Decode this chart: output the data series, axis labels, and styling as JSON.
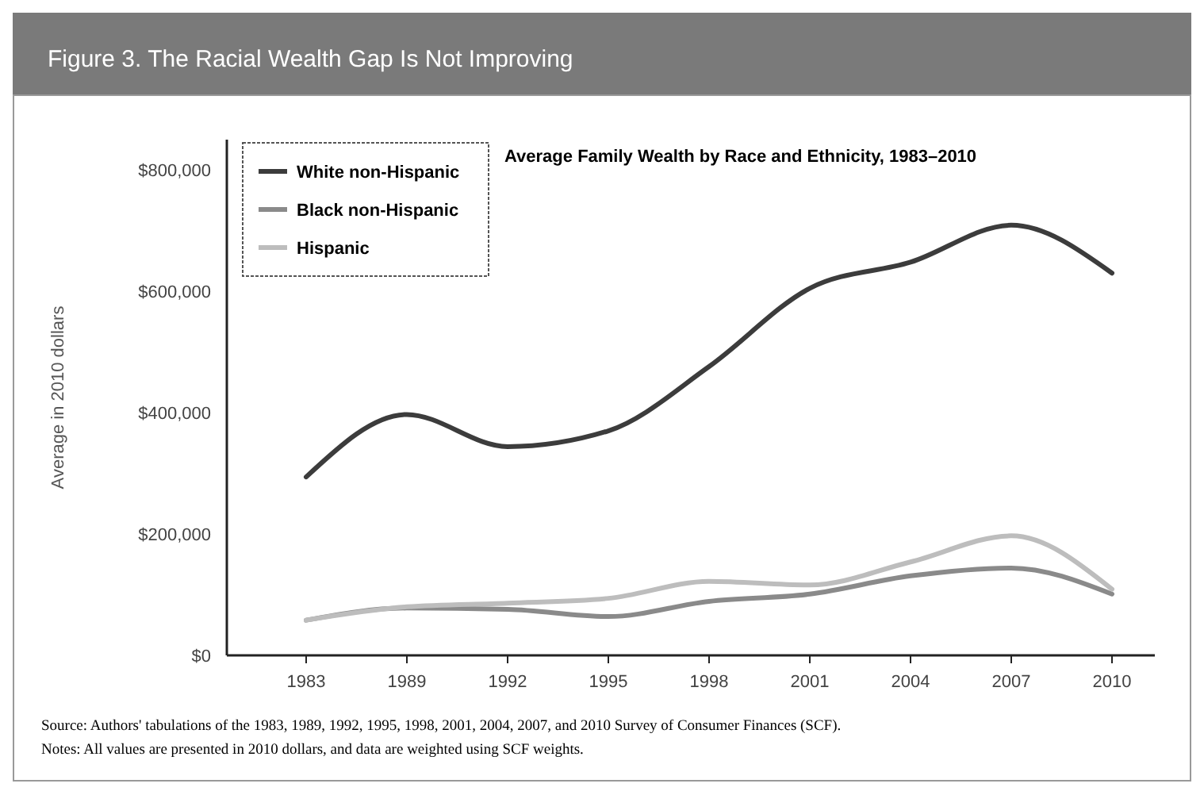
{
  "chart_data": {
    "type": "line",
    "title": "Figure 3. The Racial Wealth Gap Is Not Improving",
    "subtitle": "Average Family Wealth by Race and Ethnicity, 1983–2010",
    "ylabel": "Average in 2010 dollars",
    "categories": [
      "1983",
      "1989",
      "1992",
      "1995",
      "1998",
      "2001",
      "2004",
      "2007",
      "2010"
    ],
    "series": [
      {
        "name": "White non-Hispanic",
        "color": "#3c3c3c",
        "values": [
          294000,
          397000,
          344000,
          370000,
          476000,
          605000,
          648000,
          709000,
          630000
        ]
      },
      {
        "name": "Black non-Hispanic",
        "color": "#8a8a8a",
        "values": [
          58000,
          78000,
          76000,
          64000,
          89000,
          101000,
          131000,
          144000,
          101000
        ]
      },
      {
        "name": "Hispanic",
        "color": "#bdbdbd",
        "values": [
          58000,
          80000,
          86000,
          94000,
          122000,
          116000,
          154000,
          197000,
          109000
        ]
      }
    ],
    "ylim": [
      0,
      850000
    ],
    "yticks": [
      {
        "value": 0,
        "label": "$0"
      },
      {
        "value": 200000,
        "label": "$200,000"
      },
      {
        "value": 400000,
        "label": "$400,000"
      },
      {
        "value": 600000,
        "label": "$600,000"
      },
      {
        "value": 800000,
        "label": "$800,000"
      }
    ],
    "legend": "top left",
    "marker": "none",
    "line_style": "solid",
    "annotations": [
      "Source: Authors' tabulations of the 1983, 1989, 1992, 1995, 1998, 2001, 2004, 2007, and 2010 Survey of Consumer Finances (SCF).",
      "Notes: All values are presented in 2010 dollars, and data are weighted using SCF weights."
    ]
  }
}
